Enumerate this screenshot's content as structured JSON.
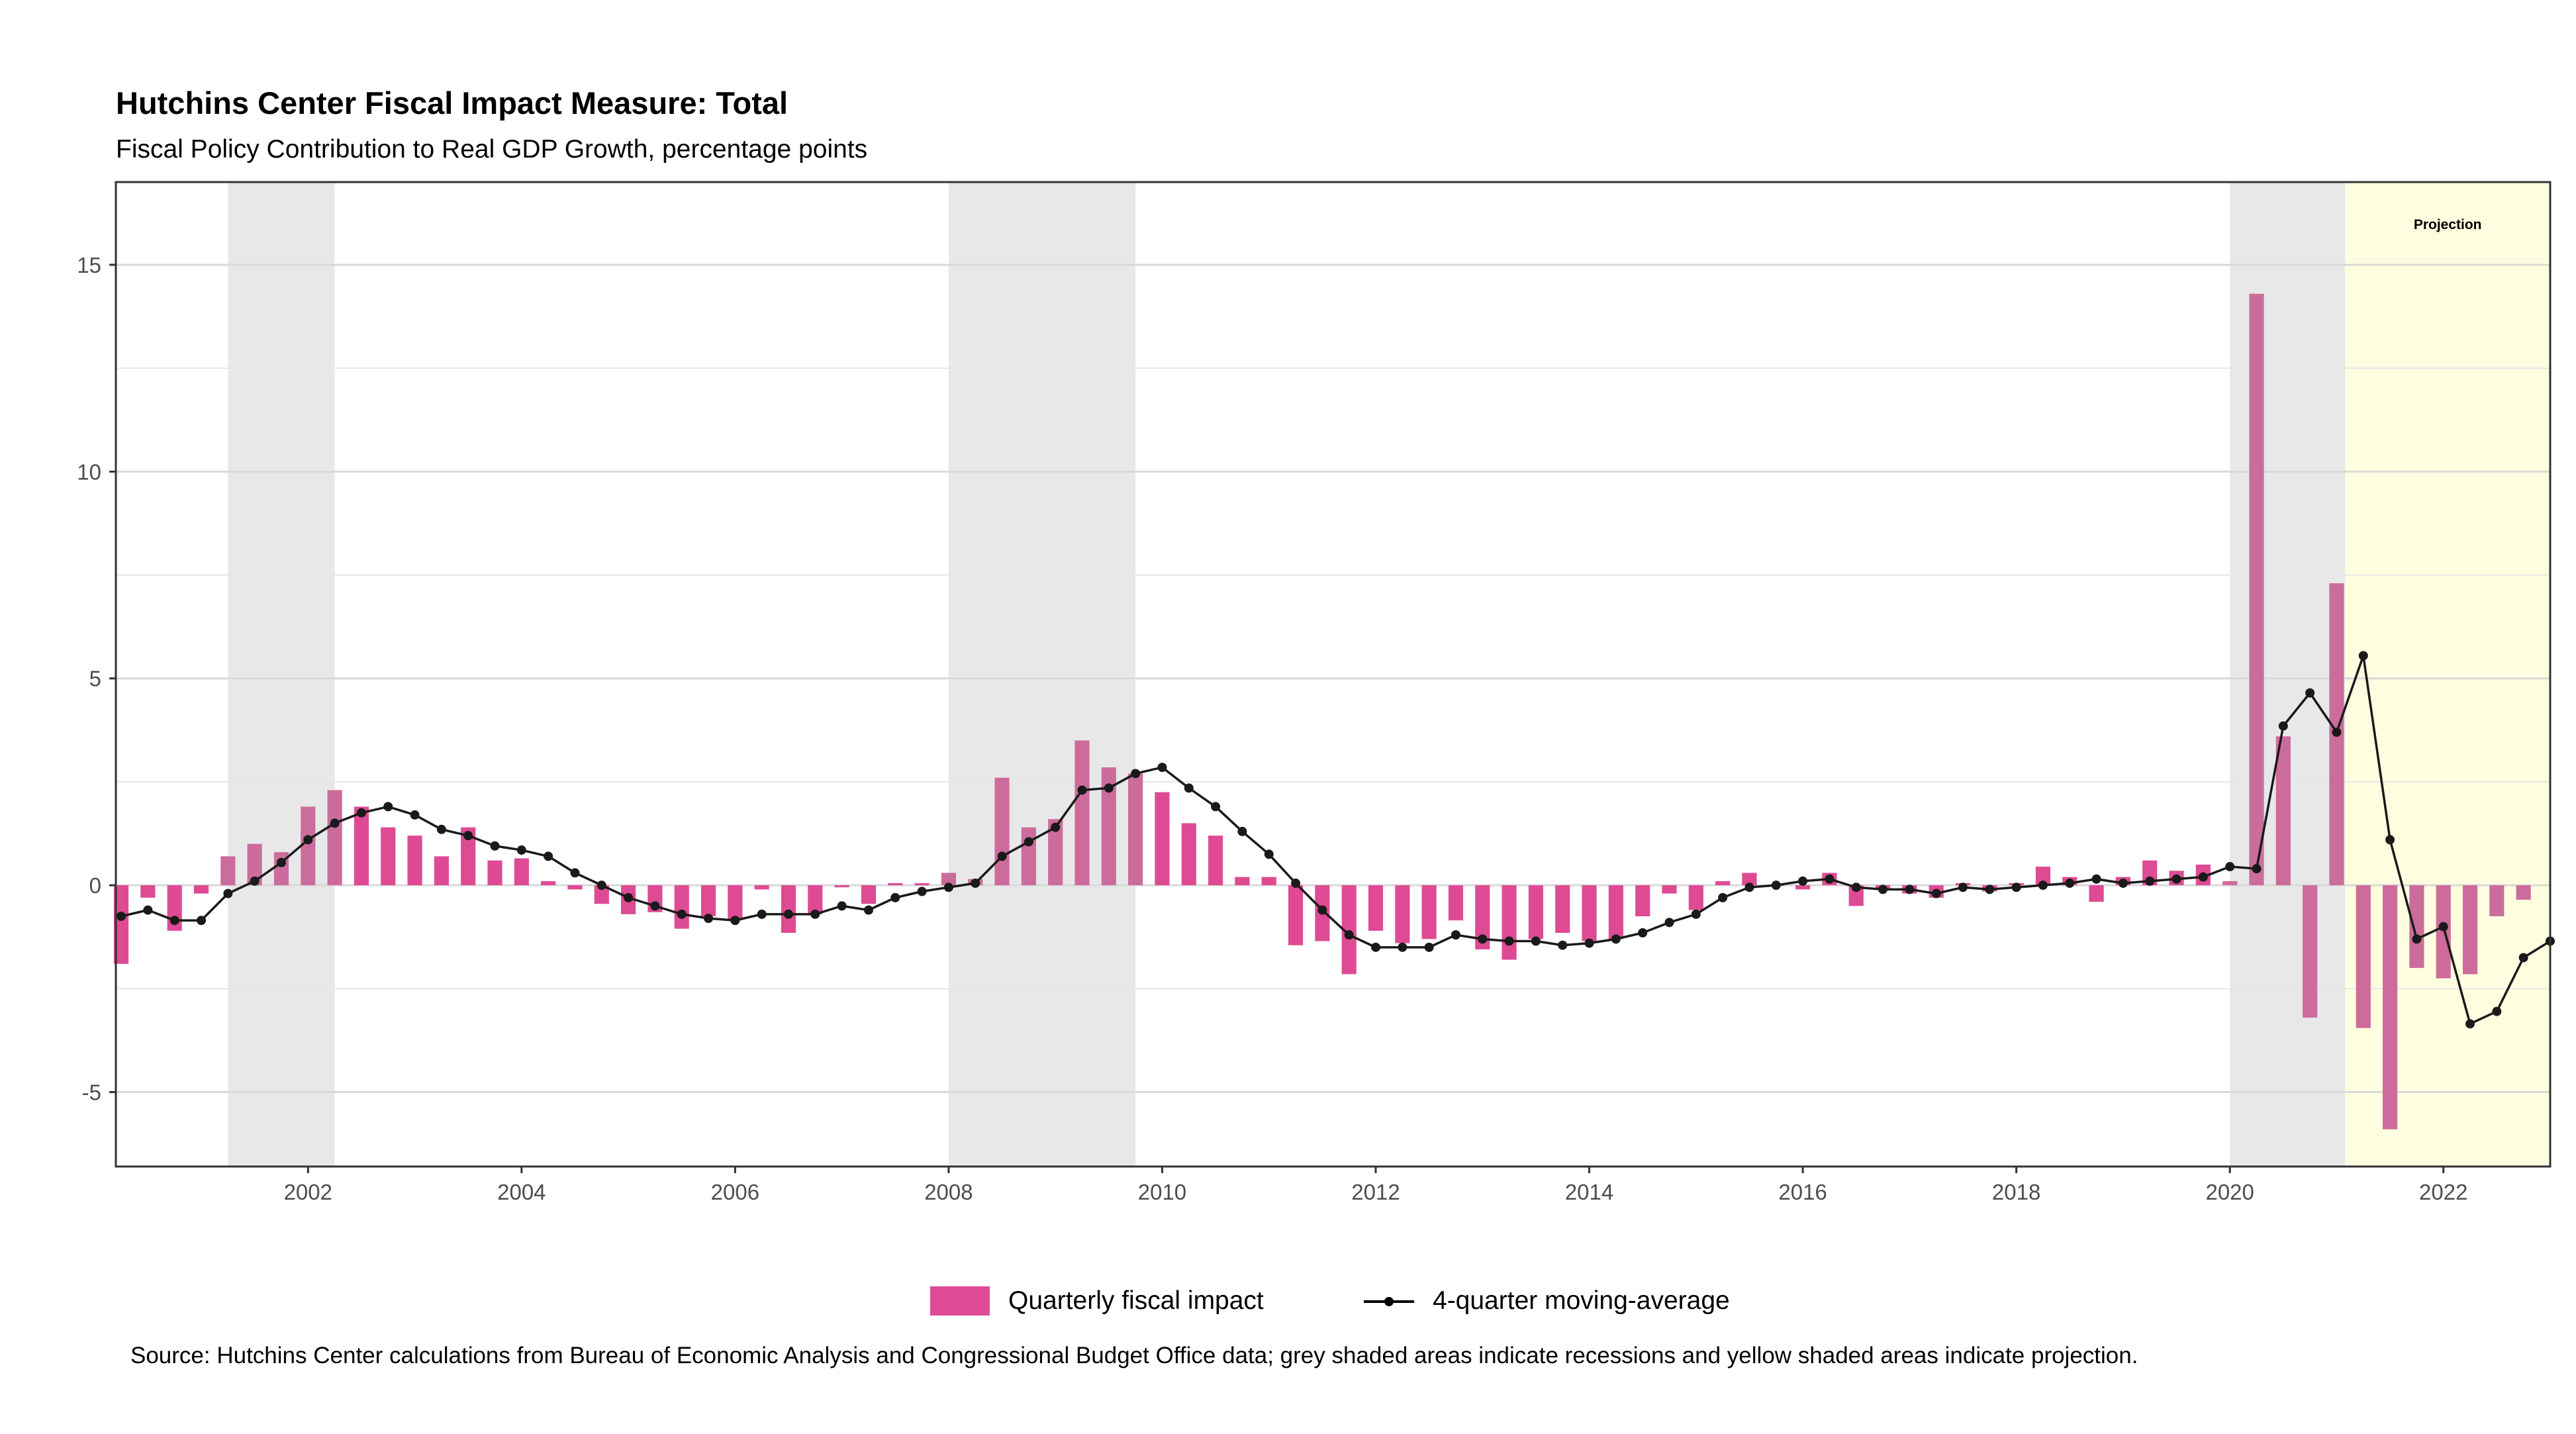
{
  "title": "Hutchins Center Fiscal Impact Measure: Total",
  "subtitle": "Fiscal Policy Contribution to Real GDP Growth, percentage points",
  "source": "Source: Hutchins Center calculations from Bureau of Economic Analysis and Congressional Budget Office data; grey shaded areas indicate recessions and yellow shaded areas indicate projection.",
  "legend": {
    "bar_label": "Quarterly fiscal impact",
    "line_label": "4-quarter moving-average"
  },
  "colors": {
    "bar": "#de4b94",
    "bar_recession": "#cc6c9c",
    "line": "#1a1a1a",
    "recession_shade": "#e8e8e8",
    "projection_shade": "#fffde0",
    "grid": "#e6e6e6"
  },
  "chart_data": {
    "type": "bar",
    "title": "Hutchins Center Fiscal Impact Measure: Total",
    "subtitle": "Fiscal Policy Contribution to Real GDP Growth, percentage points",
    "xlabel": "",
    "ylabel": "",
    "x_start": 2000.25,
    "x_step": 0.25,
    "xlim": [
      2000.2,
      2023.0
    ],
    "ylim": [
      -6.8,
      17
    ],
    "x_ticks": [
      2002,
      2004,
      2006,
      2008,
      2010,
      2012,
      2014,
      2016,
      2018,
      2020,
      2022
    ],
    "x_tick_labels": [
      "2002",
      "2004",
      "2006",
      "2008",
      "2010",
      "2012",
      "2014",
      "2016",
      "2018",
      "2020",
      "2022"
    ],
    "y_ticks": [
      -5,
      0,
      5,
      10,
      15
    ],
    "y_tick_labels": [
      "-5",
      "0",
      "5",
      "10",
      "15"
    ],
    "grid": true,
    "legend_position": "bottom",
    "recessions": [
      [
        2001.25,
        2002.25
      ],
      [
        2008.0,
        2009.75
      ],
      [
        2020.0,
        2021.08
      ]
    ],
    "projection": {
      "start": 2021.08,
      "end": 2023.0,
      "label": "Projection"
    },
    "series": [
      {
        "name": "Quarterly fiscal impact",
        "kind": "bar",
        "values": [
          -1.9,
          -0.3,
          -1.1,
          -0.2,
          0.7,
          1.0,
          0.8,
          1.9,
          2.3,
          1.9,
          1.4,
          1.2,
          0.7,
          1.4,
          0.6,
          0.65,
          0.1,
          -0.1,
          -0.45,
          -0.7,
          -0.65,
          -1.05,
          -0.75,
          -0.85,
          -0.1,
          -1.15,
          -0.7,
          -0.05,
          -0.45,
          0.05,
          0.05,
          0.3,
          0.15,
          2.6,
          1.4,
          1.6,
          3.5,
          2.85,
          2.7,
          2.25,
          1.5,
          1.2,
          0.2,
          0.2,
          -1.45,
          -1.35,
          -2.15,
          -1.1,
          -1.4,
          -1.3,
          -0.85,
          -1.55,
          -1.8,
          -1.3,
          -1.15,
          -1.35,
          -1.3,
          -0.75,
          -0.2,
          -0.6,
          0.1,
          0.3,
          0.0,
          -0.1,
          0.3,
          -0.5,
          -0.1,
          -0.2,
          -0.3,
          0.05,
          -0.15,
          0.05,
          0.45,
          0.2,
          -0.4,
          0.2,
          0.6,
          0.35,
          0.5,
          0.1,
          14.3,
          3.6,
          -3.2,
          7.3,
          -3.45,
          -5.9,
          -2.0,
          -2.25,
          -2.15,
          -0.75,
          -0.35
        ]
      },
      {
        "name": "4-quarter moving-average",
        "kind": "line",
        "values": [
          -0.75,
          -0.6,
          -0.85,
          -0.85,
          -0.2,
          0.1,
          0.55,
          1.1,
          1.5,
          1.75,
          1.9,
          1.7,
          1.35,
          1.2,
          0.95,
          0.85,
          0.7,
          0.3,
          0.0,
          -0.3,
          -0.5,
          -0.7,
          -0.8,
          -0.85,
          -0.7,
          -0.7,
          -0.7,
          -0.5,
          -0.6,
          -0.3,
          -0.15,
          -0.05,
          0.05,
          0.7,
          1.05,
          1.4,
          2.3,
          2.35,
          2.7,
          2.85,
          2.35,
          1.9,
          1.3,
          0.75,
          0.05,
          -0.6,
          -1.2,
          -1.5,
          -1.5,
          -1.5,
          -1.2,
          -1.3,
          -1.35,
          -1.35,
          -1.45,
          -1.4,
          -1.3,
          -1.15,
          -0.9,
          -0.7,
          -0.3,
          -0.05,
          0.0,
          0.1,
          0.15,
          -0.05,
          -0.1,
          -0.1,
          -0.2,
          -0.05,
          -0.1,
          -0.05,
          0.0,
          0.05,
          0.15,
          0.05,
          0.1,
          0.15,
          0.2,
          0.45,
          0.4,
          3.85,
          4.65,
          3.7,
          5.55,
          1.1,
          -1.3,
          -1.0,
          -3.35,
          -3.05,
          -1.75,
          -1.35
        ]
      }
    ]
  }
}
